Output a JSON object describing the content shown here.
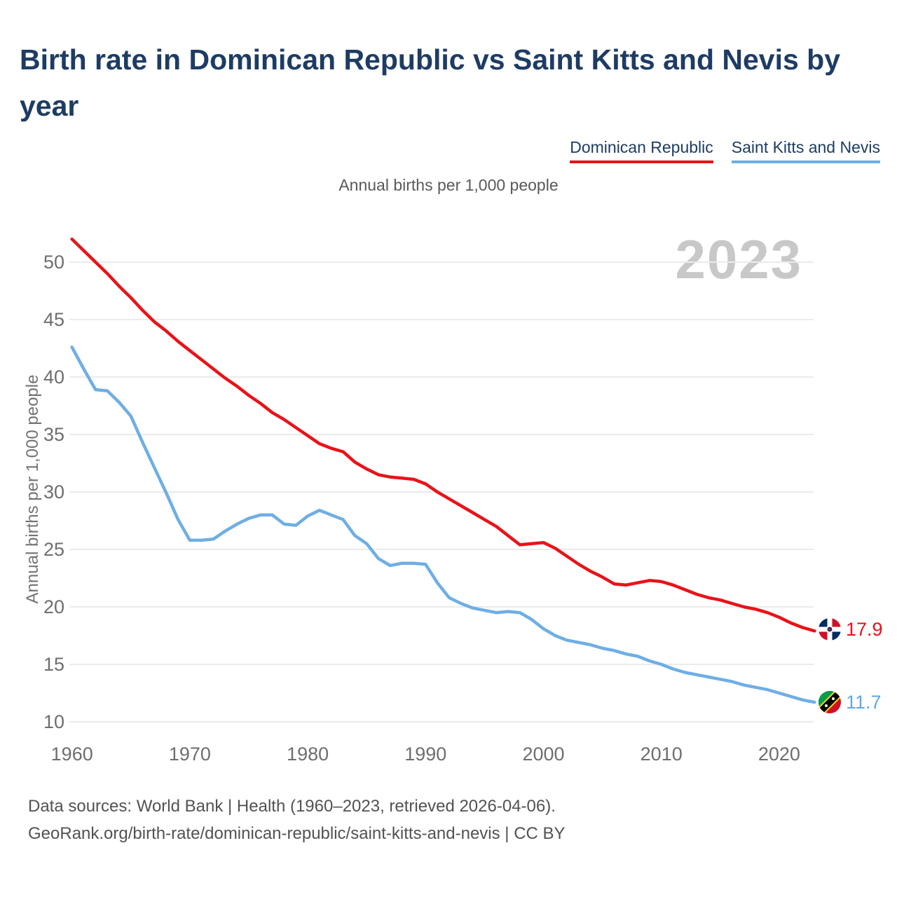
{
  "title": "Birth rate in Dominican Republic vs Saint Kitts and Nevis by year",
  "subtitle": "Annual births per 1,000 people",
  "watermark": "2023",
  "y_axis_label": "Annual births per 1,000 people",
  "legend": [
    {
      "label": "Dominican Republic",
      "color": "#e91219"
    },
    {
      "label": "Saint Kitts and Nevis",
      "color": "#6eaee4"
    }
  ],
  "end_labels": [
    {
      "value": "17.9",
      "color": "#e91219",
      "flag": "dominican-republic-flag-icon"
    },
    {
      "value": "11.7",
      "color": "#5fa8e2",
      "flag": "saint-kitts-and-nevis-flag-icon"
    }
  ],
  "footer": {
    "line1": "Data sources: World Bank | Health (1960–2023, retrieved 2026-04-06).",
    "line2": "GeoRank.org/birth-rate/dominican-republic/saint-kitts-and-nevis | CC BY"
  },
  "chart_data": {
    "type": "line",
    "title": "Birth rate in Dominican Republic vs Saint Kitts and Nevis by year",
    "xlabel": "",
    "ylabel": "Annual births per 1,000 people",
    "xlim": [
      1960,
      2023
    ],
    "ylim": [
      10,
      52.5
    ],
    "grid": true,
    "legend_position": "top-right",
    "xticks": [
      1960,
      1970,
      1980,
      1990,
      2000,
      2010,
      2020
    ],
    "yticks": [
      10,
      15,
      20,
      25,
      30,
      35,
      40,
      45,
      50
    ],
    "x": [
      1960,
      1961,
      1962,
      1963,
      1964,
      1965,
      1966,
      1967,
      1968,
      1969,
      1970,
      1971,
      1972,
      1973,
      1974,
      1975,
      1976,
      1977,
      1978,
      1979,
      1980,
      1981,
      1982,
      1983,
      1984,
      1985,
      1986,
      1987,
      1988,
      1989,
      1990,
      1991,
      1992,
      1993,
      1994,
      1995,
      1996,
      1997,
      1998,
      1999,
      2000,
      2001,
      2002,
      2003,
      2004,
      2005,
      2006,
      2007,
      2008,
      2009,
      2010,
      2011,
      2012,
      2013,
      2014,
      2015,
      2016,
      2017,
      2018,
      2019,
      2020,
      2021,
      2022,
      2023
    ],
    "series": [
      {
        "id": "dominican-republic",
        "name": "Dominican Republic",
        "color": "#e91219",
        "end_value": 17.9,
        "values": [
          52.0,
          51.0,
          50.0,
          49.0,
          47.9,
          46.9,
          45.8,
          44.8,
          44.0,
          43.1,
          42.3,
          41.5,
          40.7,
          39.9,
          39.2,
          38.4,
          37.7,
          36.9,
          36.3,
          35.6,
          34.9,
          34.2,
          33.8,
          33.5,
          32.6,
          32.0,
          31.5,
          31.3,
          31.2,
          31.1,
          30.7,
          30.0,
          29.4,
          28.8,
          28.2,
          27.6,
          27.0,
          26.2,
          25.4,
          25.5,
          25.6,
          25.1,
          24.4,
          23.7,
          23.1,
          22.6,
          22.0,
          21.9,
          22.1,
          22.3,
          22.2,
          21.9,
          21.5,
          21.1,
          20.8,
          20.6,
          20.3,
          20.0,
          19.8,
          19.5,
          19.1,
          18.6,
          18.2,
          17.9
        ]
      },
      {
        "id": "saint-kitts-and-nevis",
        "name": "Saint Kitts and Nevis",
        "color": "#6eaee4",
        "end_value": 11.7,
        "values": [
          42.6,
          40.7,
          38.9,
          38.8,
          37.8,
          36.6,
          34.3,
          32.1,
          29.9,
          27.6,
          25.8,
          25.8,
          25.9,
          26.6,
          27.2,
          27.7,
          28.0,
          28.0,
          27.2,
          27.1,
          27.9,
          28.4,
          28.0,
          27.6,
          26.2,
          25.5,
          24.2,
          23.6,
          23.8,
          23.8,
          23.7,
          22.1,
          20.8,
          20.3,
          19.9,
          19.7,
          19.5,
          19.6,
          19.5,
          18.9,
          18.1,
          17.5,
          17.1,
          16.9,
          16.7,
          16.4,
          16.2,
          15.9,
          15.7,
          15.3,
          15.0,
          14.6,
          14.3,
          14.1,
          13.9,
          13.7,
          13.5,
          13.2,
          13.0,
          12.8,
          12.5,
          12.2,
          11.9,
          11.7
        ]
      }
    ]
  }
}
